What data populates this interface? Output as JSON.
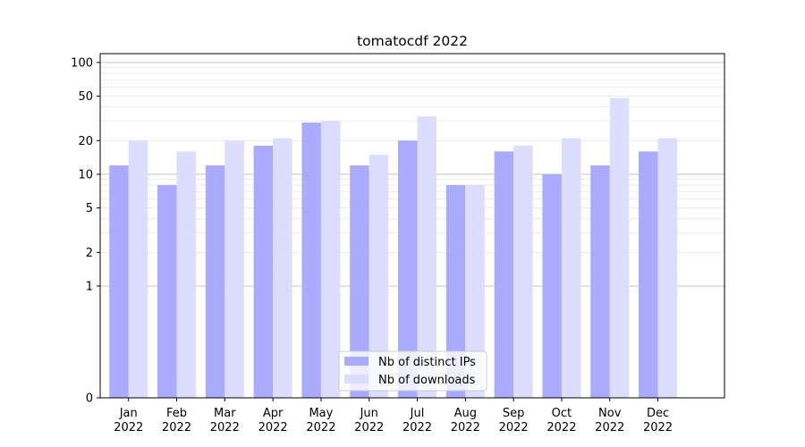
{
  "chart_data": {
    "type": "bar",
    "title": "tomatocdf 2022",
    "xlabel": "",
    "ylabel": "",
    "y_scale": "symlog",
    "ylim": [
      0,
      120
    ],
    "y_ticks": [
      0,
      1,
      2,
      5,
      10,
      20,
      50,
      100
    ],
    "y_tick_labels": [
      "0",
      "1",
      "2",
      "5",
      "10",
      "20",
      "50",
      "100"
    ],
    "categories": [
      [
        "Jan",
        "2022"
      ],
      [
        "Feb",
        "2022"
      ],
      [
        "Mar",
        "2022"
      ],
      [
        "Apr",
        "2022"
      ],
      [
        "May",
        "2022"
      ],
      [
        "Jun",
        "2022"
      ],
      [
        "Jul",
        "2022"
      ],
      [
        "Aug",
        "2022"
      ],
      [
        "Sep",
        "2022"
      ],
      [
        "Oct",
        "2022"
      ],
      [
        "Nov",
        "2022"
      ],
      [
        "Dec",
        "2022"
      ]
    ],
    "series": [
      {
        "name": "Nb of distinct IPs",
        "color": "#aaaaff",
        "values": [
          12,
          8,
          12,
          18,
          29,
          12,
          20,
          8,
          16,
          10,
          12,
          16
        ]
      },
      {
        "name": "Nb of downloads",
        "color": "#ddddff",
        "values": [
          20,
          16,
          20,
          21,
          30,
          15,
          33,
          8,
          18,
          21,
          48,
          21
        ]
      }
    ],
    "grid": true,
    "legend_position": "lower-center"
  }
}
